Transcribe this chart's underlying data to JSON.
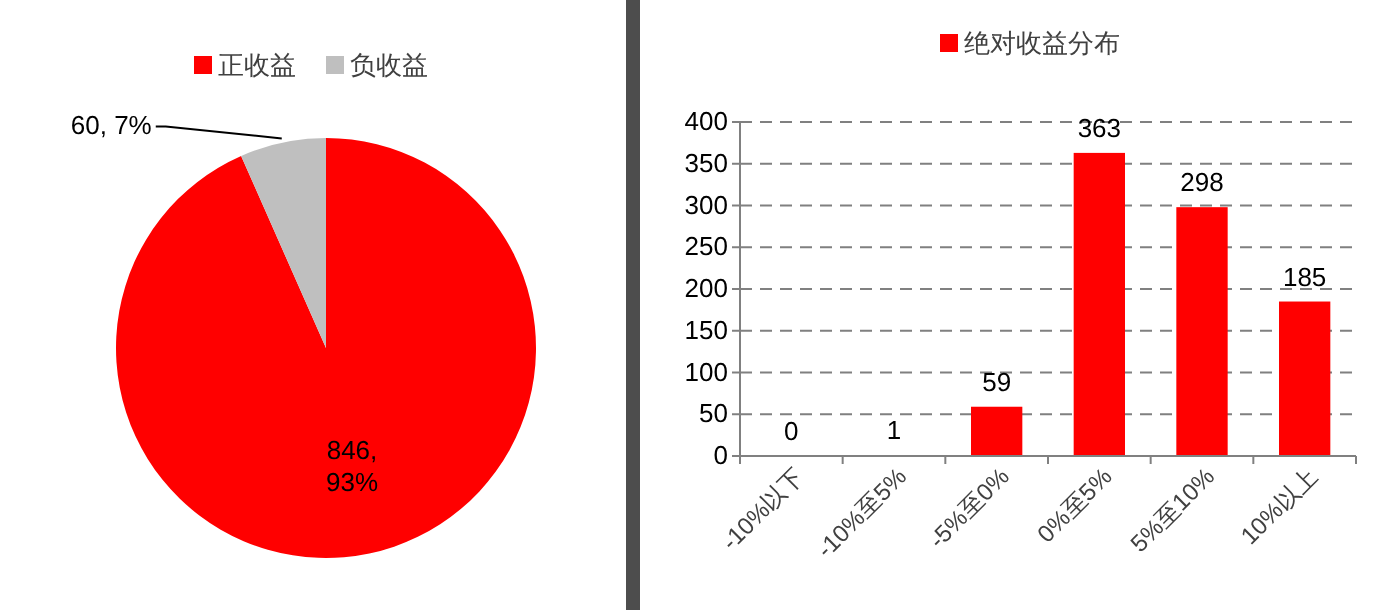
{
  "chart_data": [
    {
      "type": "pie",
      "categories": [
        "正收益",
        "负收益"
      ],
      "values": [
        846,
        60
      ],
      "colors": [
        "#ff0000",
        "#bfbfbf"
      ],
      "value_labels": [
        "846, 93%",
        "60, 7%"
      ],
      "legend": "top"
    },
    {
      "type": "bar",
      "categories": [
        "-10%以下",
        "-10%至5%",
        "-5%至0%",
        "0%至5%",
        "5%至10%",
        "10%以上"
      ],
      "series": [
        {
          "name": "绝对收益分布",
          "color": "#ff0000",
          "values": [
            0,
            1,
            59,
            363,
            298,
            185
          ]
        }
      ],
      "ylim": [
        0,
        400
      ],
      "yticks": [
        0,
        50,
        100,
        150,
        200,
        250,
        300,
        350,
        400
      ],
      "grid": "y",
      "data_labels": true,
      "legend": "top"
    }
  ]
}
